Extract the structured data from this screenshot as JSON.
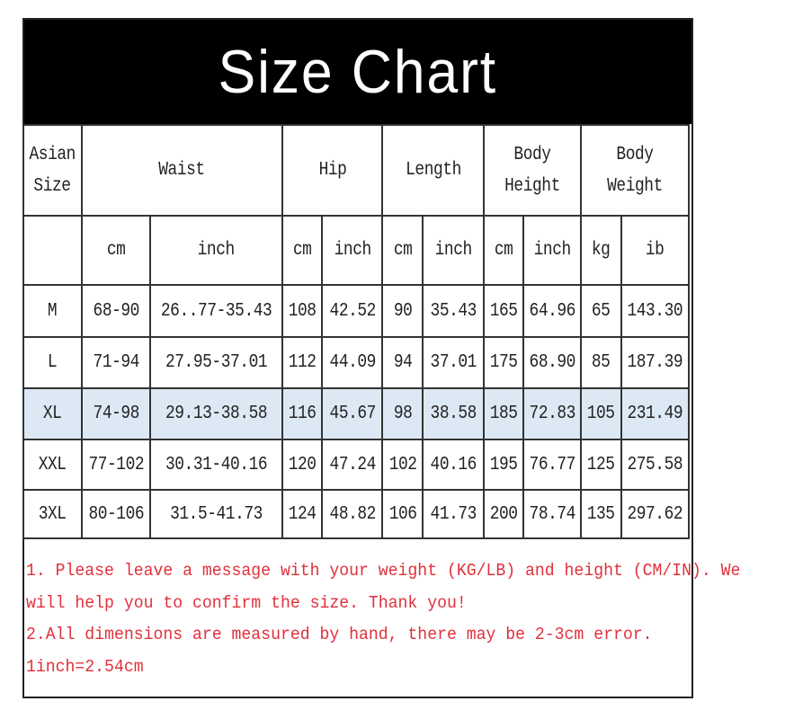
{
  "title": "Size Chart",
  "header": {
    "groups": [
      "Asian Size",
      "Waist",
      "Hip",
      "Length",
      "Body Height",
      "Body Weight"
    ],
    "units": [
      "",
      "cm",
      "inch",
      "cm",
      "inch",
      "cm",
      "inch",
      "cm",
      "inch",
      "kg",
      "ib"
    ]
  },
  "rows": [
    {
      "cells": [
        "M",
        "68-90",
        "26..77-35.43",
        "108",
        "42.52",
        "90",
        "35.43",
        "165",
        "64.96",
        "65",
        "143.30"
      ],
      "highlighted": false
    },
    {
      "cells": [
        "L",
        "71-94",
        "27.95-37.01",
        "112",
        "44.09",
        "94",
        "37.01",
        "175",
        "68.90",
        "85",
        "187.39"
      ],
      "highlighted": false
    },
    {
      "cells": [
        "XL",
        "74-98",
        "29.13-38.58",
        "116",
        "45.67",
        "98",
        "38.58",
        "185",
        "72.83",
        "105",
        "231.49"
      ],
      "highlighted": true
    },
    {
      "cells": [
        "XXL",
        "77-102",
        "30.31-40.16",
        "120",
        "47.24",
        "102",
        "40.16",
        "195",
        "76.77",
        "125",
        "275.58"
      ],
      "highlighted": false
    },
    {
      "cells": [
        "3XL",
        "80-106",
        "31.5-41.73",
        "124",
        "48.82",
        "106",
        "41.73",
        "200",
        "78.74",
        "135",
        "297.62"
      ],
      "highlighted": false
    }
  ],
  "notes": [
    "1. Please leave a message with your weight (KG/LB) and height (CM/IN). We",
    "will help you to confirm the size. Thank you!",
    "2.All dimensions are measured by hand, there may be 2-3cm error.",
    "1inch=2.54cm"
  ],
  "colors": {
    "highlight": "#dce9f5",
    "notes": "#e0303a",
    "title_bg": "#000000"
  }
}
